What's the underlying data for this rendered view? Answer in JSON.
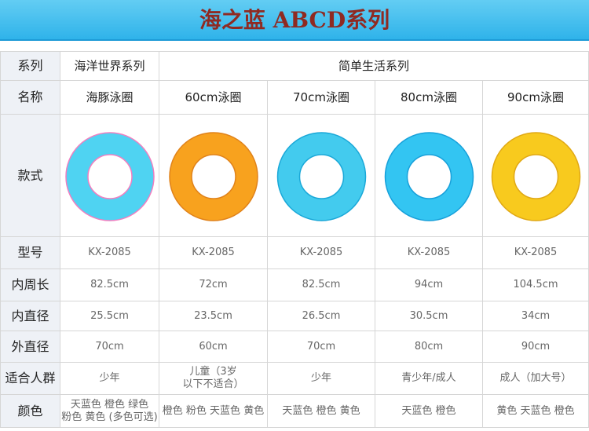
{
  "header": {
    "title": "海之蓝 ABCD系列"
  },
  "table": {
    "rows": [
      {
        "label": "系列",
        "cells": [
          "海洋世界系列",
          "简单生活系列"
        ]
      },
      {
        "label": "名称",
        "cells": [
          "海豚泳圈",
          "60cm泳圈",
          "70cm泳圈",
          "80cm泳圈",
          "90cm泳圈"
        ]
      },
      {
        "label": "款式"
      },
      {
        "label": "型号",
        "cells": [
          "KX-2085",
          "KX-2085",
          "KX-2085",
          "KX-2085",
          "KX-2085"
        ]
      },
      {
        "label": "内周长",
        "cells": [
          "82.5cm",
          "72cm",
          "82.5cm",
          "94cm",
          "104.5cm"
        ]
      },
      {
        "label": "内直径",
        "cells": [
          "25.5cm",
          "23.5cm",
          "26.5cm",
          "30.5cm",
          "34cm"
        ]
      },
      {
        "label": "外直径",
        "cells": [
          "70cm",
          "60cm",
          "70cm",
          "80cm",
          "90cm"
        ]
      },
      {
        "label": "适合人群",
        "cells": [
          "少年",
          [
            "儿童（3岁",
            "以下不适合）"
          ],
          "少年",
          "青少年/成人",
          "成人（加大号）"
        ]
      },
      {
        "label": "颜色",
        "cells": [
          [
            "天蓝色 橙色 绿色",
            "粉色 黄色 (多色可选)"
          ],
          "橙色 粉色 天蓝色 黄色",
          "天蓝色 橙色 黄色",
          "天蓝色 橙色",
          "黄色 天蓝色 橙色"
        ]
      }
    ]
  }
}
